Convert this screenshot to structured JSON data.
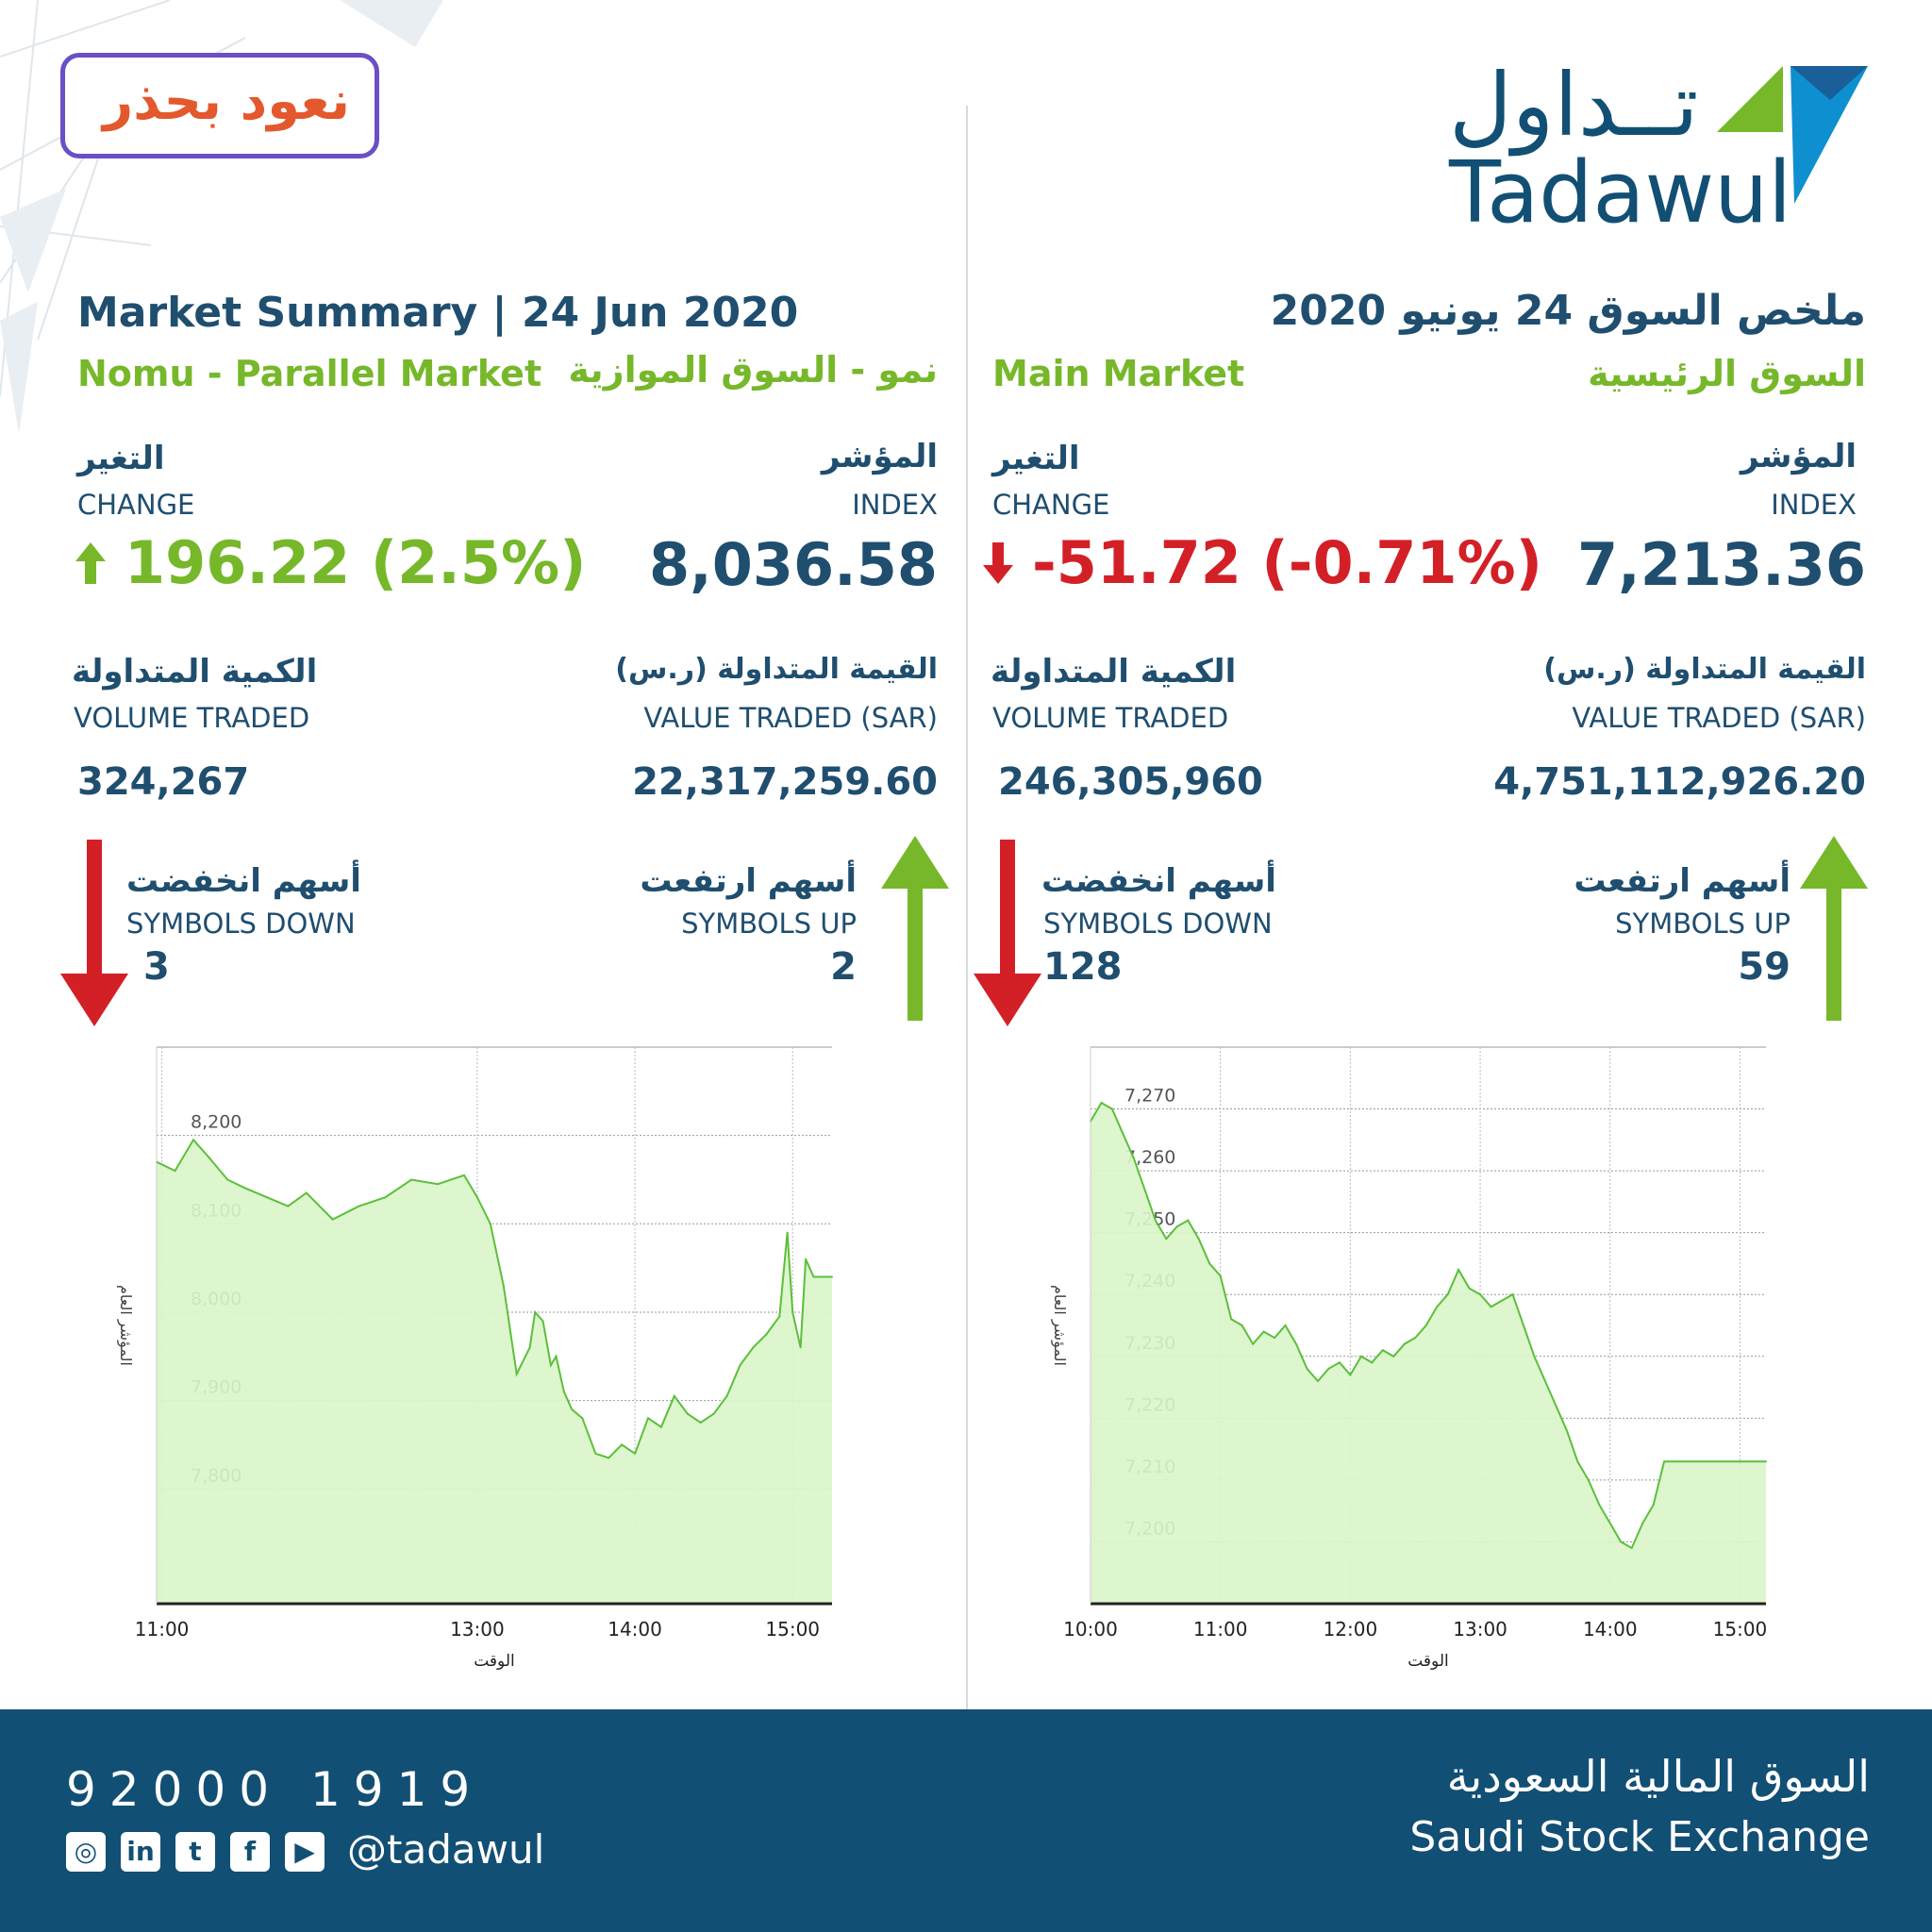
{
  "campaign": {
    "badge_text": "نعود بحذر"
  },
  "brand": {
    "logo_ar": "تــداول",
    "logo_en": "Tadawul"
  },
  "left": {
    "title": "Market Summary | 24  Jun 2020",
    "market_en": "Nomu - Parallel Market",
    "market_ar": "نمو - السوق الموازية",
    "index_ar": "المؤشر",
    "index_en": "INDEX",
    "index_value": "8,036.58",
    "change_ar": "التغير",
    "change_en": "CHANGE",
    "change_value": "196.22 (2.5%)",
    "value_ar": "القيمة المتداولة (ر.س)",
    "value_en": "VALUE TRADED (SAR)",
    "value_value": "22,317,259.60",
    "volume_ar": "الكمية المتداولة",
    "volume_en": "VOLUME TRADED",
    "volume_value": "324,267",
    "up_ar": "أسهم ارتفعت",
    "up_en": "SYMBOLS UP",
    "up_value": "2",
    "down_ar": "أسهم انخفضت",
    "down_en": "SYMBOLS DOWN",
    "down_value": "3"
  },
  "right": {
    "title": "ملخص السوق  24 يونيو 2020",
    "market_en": "Main Market",
    "market_ar": "السوق الرئيسية",
    "index_ar": "المؤشر",
    "index_en": "INDEX",
    "index_value": "7,213.36",
    "change_ar": "التغير",
    "change_en": "CHANGE",
    "change_value": "-51.72 (-0.71%)",
    "value_ar": "القيمة المتداولة (ر.س)",
    "value_en": "VALUE TRADED (SAR)",
    "value_value": "4,751,112,926.20",
    "volume_ar": "الكمية المتداولة",
    "volume_en": "VOLUME TRADED",
    "volume_value": "246,305,960",
    "up_ar": "أسهم ارتفعت",
    "up_en": "SYMBOLS UP",
    "up_value": "59",
    "down_ar": "أسهم انخفضت",
    "down_en": "SYMBOLS DOWN",
    "down_value": "128"
  },
  "colors": {
    "navy": "#1f4e6f",
    "green": "#76b82a",
    "red": "#d32027",
    "footer": "#124f74",
    "chart_fill": "#d9f5c9",
    "chart_line": "#5cbf3a"
  },
  "icons": {
    "up": "arrow-up-icon",
    "down": "arrow-down-icon"
  },
  "footer": {
    "phone": "92000 1919",
    "handle": "@tadawul",
    "exchange_ar": "السوق المالية السعودية",
    "exchange_en": "Saudi Stock Exchange",
    "social_icons": [
      "instagram-icon",
      "linkedin-icon",
      "twitter-icon",
      "facebook-icon",
      "youtube-icon"
    ]
  },
  "chart_data": [
    {
      "type": "area",
      "xlabel": "الوقت",
      "ylabel": "المؤشر العام",
      "x_ticks": [
        "11:00",
        "13:00",
        "14:00",
        "15:00"
      ],
      "y_ticks": [
        "8,200",
        "8,100",
        "8,000",
        "7,900",
        "7,800"
      ],
      "ylim": [
        7670,
        8300
      ],
      "xlim": [
        "10:58",
        "15:15"
      ],
      "x": [
        "10:58",
        "11:05",
        "11:12",
        "11:18",
        "11:25",
        "11:32",
        "11:40",
        "11:48",
        "11:55",
        "12:05",
        "12:15",
        "12:25",
        "12:35",
        "12:45",
        "12:55",
        "13:00",
        "13:05",
        "13:10",
        "13:15",
        "13:20",
        "13:22",
        "13:25",
        "13:28",
        "13:30",
        "13:33",
        "13:36",
        "13:40",
        "13:45",
        "13:50",
        "13:55",
        "14:00",
        "14:05",
        "14:10",
        "14:15",
        "14:20",
        "14:25",
        "14:30",
        "14:35",
        "14:40",
        "14:45",
        "14:50",
        "14:55",
        "14:58",
        "15:00",
        "15:03",
        "15:05",
        "15:08",
        "15:15"
      ],
      "values": [
        8170,
        8160,
        8195,
        8175,
        8150,
        8140,
        8130,
        8120,
        8135,
        8105,
        8120,
        8130,
        8150,
        8145,
        8155,
        8130,
        8100,
        8030,
        7930,
        7960,
        8000,
        7990,
        7940,
        7950,
        7910,
        7890,
        7880,
        7840,
        7835,
        7850,
        7840,
        7880,
        7870,
        7905,
        7885,
        7875,
        7885,
        7905,
        7940,
        7960,
        7975,
        7995,
        8090,
        8000,
        7960,
        8060,
        8040,
        8040
      ]
    },
    {
      "type": "area",
      "xlabel": "الوقت",
      "ylabel": "المؤشر العام",
      "x_ticks": [
        "10:00",
        "11:00",
        "12:00",
        "13:00",
        "14:00",
        "15:00"
      ],
      "y_ticks": [
        "7,270",
        "7,260",
        "7,250",
        "7,240",
        "7,230",
        "7,220",
        "7,210",
        "7,200"
      ],
      "ylim": [
        7190,
        7280
      ],
      "xlim": [
        "10:00",
        "15:12"
      ],
      "x": [
        "10:00",
        "10:05",
        "10:10",
        "10:15",
        "10:20",
        "10:25",
        "10:30",
        "10:35",
        "10:40",
        "10:45",
        "10:50",
        "10:55",
        "11:00",
        "11:05",
        "11:10",
        "11:15",
        "11:20",
        "11:25",
        "11:30",
        "11:35",
        "11:40",
        "11:45",
        "11:50",
        "11:55",
        "12:00",
        "12:05",
        "12:10",
        "12:15",
        "12:20",
        "12:25",
        "12:30",
        "12:35",
        "12:40",
        "12:45",
        "12:50",
        "12:55",
        "13:00",
        "13:05",
        "13:10",
        "13:15",
        "13:20",
        "13:25",
        "13:30",
        "13:35",
        "13:40",
        "13:45",
        "13:50",
        "13:55",
        "14:00",
        "14:05",
        "14:10",
        "14:15",
        "14:20",
        "14:25",
        "14:30",
        "14:35",
        "14:40",
        "14:45",
        "14:50",
        "14:55",
        "15:00",
        "15:05",
        "15:12"
      ],
      "values": [
        7268,
        7271,
        7270,
        7266,
        7262,
        7257,
        7252,
        7249,
        7251,
        7252,
        7249,
        7245,
        7243,
        7236,
        7235,
        7232,
        7234,
        7233,
        7235,
        7232,
        7228,
        7226,
        7228,
        7229,
        7227,
        7230,
        7229,
        7231,
        7230,
        7232,
        7233,
        7235,
        7238,
        7240,
        7244,
        7241,
        7240,
        7238,
        7239,
        7240,
        7235,
        7230,
        7226,
        7222,
        7218,
        7213,
        7210,
        7206,
        7203,
        7200,
        7199,
        7203,
        7206,
        7213,
        7213,
        7213,
        7213,
        7213,
        7213,
        7213,
        7213,
        7213,
        7213
      ]
    }
  ]
}
